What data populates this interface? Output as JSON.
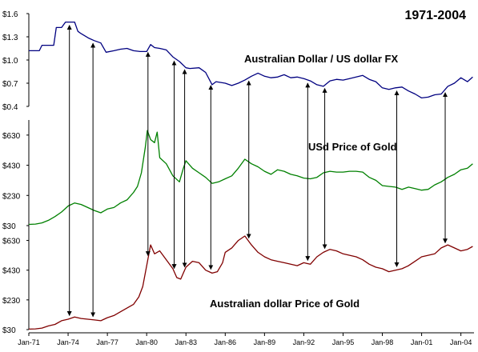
{
  "chart_data": {
    "type": "line",
    "title": "1971-2004",
    "x_tick_labels": [
      "Jan-71",
      "Jan-74",
      "Jan-77",
      "Jan-80",
      "Jan-83",
      "Jan-86",
      "Jan-89",
      "Jan-92",
      "Jan-95",
      "Jan-98",
      "Jan-01",
      "Jan-04"
    ],
    "x_range": [
      1971.0,
      2005.0
    ],
    "panels": [
      {
        "name": "Australian Dollar / US dollar FX",
        "color": "#000080",
        "ylim": [
          0.4,
          1.6
        ],
        "yticks": [
          1.6,
          1.3,
          1.0,
          0.7,
          0.4
        ],
        "ytick_labels": [
          "$1.6",
          "$1.3",
          "$1.0",
          "$0.7",
          "$0.4"
        ],
        "series": {
          "x": [
            1971.0,
            1971.8,
            1972.0,
            1972.9,
            1973.1,
            1973.5,
            1973.8,
            1974.5,
            1974.75,
            1975.0,
            1975.6,
            1976.0,
            1976.5,
            1976.9,
            1977.5,
            1978.0,
            1978.5,
            1979.0,
            1979.5,
            1980.0,
            1980.3,
            1980.6,
            1981.0,
            1981.5,
            1982.0,
            1982.5,
            1983.0,
            1983.3,
            1984.0,
            1984.5,
            1985.0,
            1985.3,
            1986.0,
            1986.5,
            1987.0,
            1987.5,
            1988.0,
            1988.5,
            1989.0,
            1989.5,
            1990.0,
            1990.5,
            1991.0,
            1991.5,
            1992.0,
            1992.5,
            1993.0,
            1993.5,
            1994.0,
            1994.5,
            1995.0,
            1995.5,
            1996.0,
            1996.5,
            1997.0,
            1997.5,
            1998.0,
            1998.5,
            1999.0,
            1999.5,
            2000.0,
            2000.5,
            2001.0,
            2001.5,
            2002.0,
            2002.5,
            2003.0,
            2003.5,
            2004.0,
            2004.5,
            2004.9
          ],
          "y": [
            1.12,
            1.12,
            1.19,
            1.19,
            1.42,
            1.42,
            1.49,
            1.49,
            1.37,
            1.34,
            1.28,
            1.25,
            1.22,
            1.1,
            1.12,
            1.14,
            1.15,
            1.12,
            1.11,
            1.11,
            1.2,
            1.16,
            1.15,
            1.13,
            1.04,
            0.98,
            0.9,
            0.89,
            0.9,
            0.84,
            0.68,
            0.72,
            0.7,
            0.67,
            0.7,
            0.74,
            0.79,
            0.83,
            0.79,
            0.77,
            0.78,
            0.81,
            0.77,
            0.78,
            0.76,
            0.73,
            0.68,
            0.66,
            0.73,
            0.75,
            0.74,
            0.76,
            0.78,
            0.8,
            0.75,
            0.72,
            0.64,
            0.62,
            0.64,
            0.65,
            0.6,
            0.56,
            0.51,
            0.52,
            0.55,
            0.56,
            0.66,
            0.7,
            0.77,
            0.72,
            0.78
          ]
        }
      },
      {
        "name": "USd Price of Gold",
        "color": "#008000",
        "ylim": [
          30,
          730
        ],
        "yticks": [
          630,
          430,
          230,
          30
        ],
        "ytick_labels": [
          "$630",
          "$430",
          "$230",
          "$30"
        ],
        "series": {
          "x": [
            1971.0,
            1971.5,
            1972.0,
            1972.5,
            1973.0,
            1973.5,
            1974.0,
            1974.5,
            1975.0,
            1975.5,
            1976.0,
            1976.5,
            1977.0,
            1977.5,
            1978.0,
            1978.5,
            1979.0,
            1979.3,
            1979.6,
            1979.9,
            1980.05,
            1980.3,
            1980.6,
            1980.8,
            1981.0,
            1981.5,
            1982.0,
            1982.5,
            1982.8,
            1983.0,
            1983.5,
            1984.0,
            1984.5,
            1985.0,
            1985.5,
            1986.0,
            1986.5,
            1987.0,
            1987.5,
            1988.0,
            1988.5,
            1989.0,
            1989.5,
            1990.0,
            1990.5,
            1991.0,
            1991.5,
            1992.0,
            1992.5,
            1993.0,
            1993.5,
            1994.0,
            1994.5,
            1995.0,
            1995.5,
            1996.0,
            1996.5,
            1997.0,
            1997.5,
            1998.0,
            1998.5,
            1999.0,
            1999.5,
            2000.0,
            2000.5,
            2001.0,
            2001.5,
            2002.0,
            2002.5,
            2003.0,
            2003.5,
            2004.0,
            2004.5,
            2004.9
          ],
          "y": [
            38,
            40,
            48,
            65,
            90,
            120,
            160,
            180,
            170,
            150,
            130,
            115,
            140,
            150,
            180,
            200,
            250,
            290,
            380,
            550,
            660,
            600,
            580,
            650,
            480,
            440,
            360,
            320,
            410,
            460,
            410,
            380,
            350,
            310,
            320,
            340,
            360,
            410,
            470,
            440,
            420,
            390,
            370,
            400,
            390,
            370,
            360,
            345,
            340,
            350,
            380,
            390,
            385,
            385,
            390,
            390,
            385,
            350,
            330,
            295,
            290,
            285,
            270,
            285,
            275,
            265,
            270,
            300,
            320,
            350,
            370,
            400,
            410,
            440
          ]
        }
      },
      {
        "name": "Australian dollar Price of Gold",
        "color": "#800000",
        "ylim": [
          30,
          730
        ],
        "yticks": [
          630,
          430,
          230,
          30
        ],
        "ytick_labels": [
          "$630",
          "$430",
          "$230",
          "$30"
        ],
        "series": {
          "x": [
            1971.0,
            1971.5,
            1972.0,
            1972.5,
            1973.0,
            1973.5,
            1974.0,
            1974.5,
            1975.0,
            1975.5,
            1976.0,
            1976.5,
            1977.0,
            1977.5,
            1978.0,
            1978.5,
            1979.0,
            1979.4,
            1979.7,
            1980.0,
            1980.3,
            1980.6,
            1981.0,
            1981.5,
            1982.0,
            1982.3,
            1982.6,
            1983.0,
            1983.5,
            1984.0,
            1984.5,
            1985.0,
            1985.4,
            1985.8,
            1986.0,
            1986.5,
            1987.0,
            1987.5,
            1988.0,
            1988.5,
            1989.0,
            1989.5,
            1990.0,
            1990.5,
            1991.0,
            1991.5,
            1992.0,
            1992.5,
            1993.0,
            1993.5,
            1994.0,
            1994.5,
            1995.0,
            1995.5,
            1996.0,
            1996.5,
            1997.0,
            1997.5,
            1998.0,
            1998.5,
            1999.0,
            1999.5,
            2000.0,
            2000.5,
            2001.0,
            2001.5,
            2002.0,
            2002.5,
            2003.0,
            2003.5,
            2004.0,
            2004.5,
            2004.9
          ],
          "y": [
            33,
            35,
            40,
            55,
            65,
            90,
            100,
            115,
            105,
            100,
            95,
            90,
            110,
            125,
            150,
            175,
            200,
            250,
            320,
            460,
            600,
            540,
            560,
            500,
            440,
            380,
            370,
            450,
            490,
            480,
            430,
            410,
            420,
            480,
            550,
            580,
            630,
            660,
            600,
            550,
            520,
            500,
            490,
            480,
            470,
            460,
            480,
            470,
            520,
            550,
            570,
            560,
            540,
            530,
            520,
            500,
            470,
            450,
            440,
            420,
            430,
            440,
            460,
            490,
            520,
            530,
            540,
            580,
            600,
            580,
            560,
            570,
            590
          ]
        }
      }
    ],
    "event_arrows_x": [
      1974.1,
      1975.9,
      1980.1,
      1982.1,
      1982.9,
      1984.9,
      1987.8,
      1992.3,
      1993.6,
      1999.1,
      2002.8
    ]
  }
}
